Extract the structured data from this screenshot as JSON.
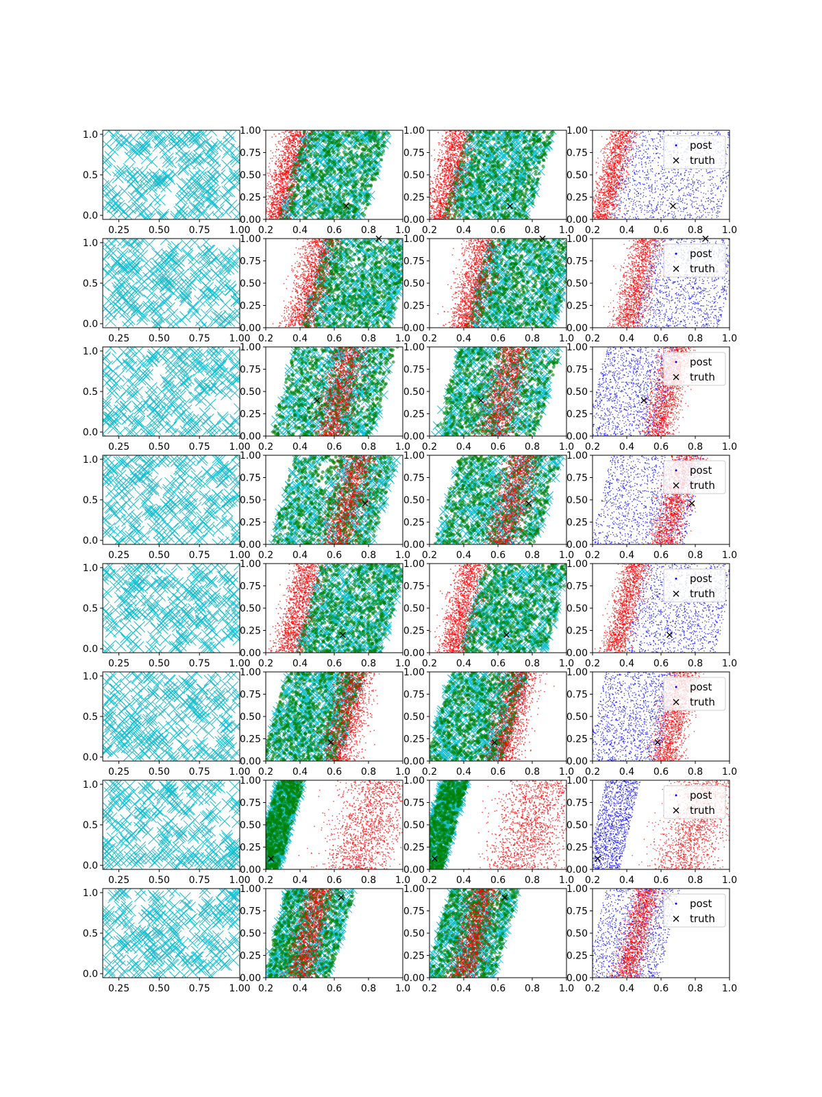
{
  "figure": {
    "rows": 8,
    "cols": 4,
    "colors": {
      "prior": "#17becf",
      "samples_a": "#ff0000",
      "samples_b": "#008000",
      "post": "#0000ff",
      "truth": "#000000",
      "axis": "#000000"
    }
  },
  "chart_data": {
    "type": "scatter",
    "panel_types": [
      "prior",
      "overlay",
      "overlay",
      "posterior"
    ],
    "column_axes": [
      {
        "xlim": [
          0.15,
          1.0
        ],
        "ylim": [
          -0.05,
          1.05
        ],
        "xticks": [
          "0.25",
          "0.50",
          "0.75",
          "1.00"
        ],
        "yticks": [
          "0.0",
          "0.5",
          "1.0"
        ]
      },
      {
        "xlim": [
          0.2,
          1.0
        ],
        "ylim": [
          0.0,
          1.0
        ],
        "xticks": [
          "0.2",
          "0.4",
          "0.6",
          "0.8",
          "1.0"
        ],
        "yticks": [
          "0.00",
          "0.25",
          "0.50",
          "0.75",
          "1.00"
        ]
      },
      {
        "xlim": [
          0.2,
          1.0
        ],
        "ylim": [
          0.0,
          1.0
        ],
        "xticks": [
          "0.2",
          "0.4",
          "0.6",
          "0.8",
          "1.0"
        ],
        "yticks": [
          "0.00",
          "0.25",
          "0.50",
          "0.75",
          "1.00"
        ]
      },
      {
        "xlim": [
          0.2,
          1.0
        ],
        "ylim": [
          0.0,
          1.0
        ],
        "xticks": [
          "0.2",
          "0.4",
          "0.6",
          "0.8",
          "1.0"
        ],
        "yticks": [
          "0.00",
          "0.25",
          "0.50",
          "0.75",
          "1.00"
        ]
      }
    ],
    "legend": {
      "entries": [
        "post",
        "truth"
      ],
      "placement": "upper right",
      "columns": [
        4
      ]
    },
    "series": [
      {
        "name": "post",
        "marker": "dot",
        "color": "#0000ff"
      },
      {
        "name": "truth",
        "marker": "x",
        "color": "#000000"
      }
    ],
    "rows": [
      {
        "truth": [
          0.67,
          0.15
        ],
        "post_band": {
          "center": [
            0.25,
            0.38
          ],
          "width": 0.1,
          "color": "red"
        },
        "post_spread": {
          "x": [
            0.35,
            1.0
          ],
          "color": "blue"
        },
        "samples_b_band": [
          0.35,
          0.85
        ]
      },
      {
        "truth": [
          0.86,
          1.0
        ],
        "post_band": {
          "center": [
            0.4,
            0.52
          ],
          "width": 0.12,
          "color": "red"
        },
        "post_spread": {
          "x": [
            0.5,
            1.0
          ],
          "color": "blue"
        },
        "samples_b_band": [
          0.48,
          1.0
        ]
      },
      {
        "truth": [
          0.5,
          0.4
        ],
        "post_band": {
          "center": [
            0.58,
            0.7
          ],
          "width": 0.12,
          "color": "red"
        },
        "post_spread": {
          "x": [
            0.22,
            0.65
          ],
          "color": "blue"
        },
        "samples_b_band": [
          0.3,
          0.9
        ]
      },
      {
        "truth": [
          0.78,
          0.46
        ],
        "post_band": {
          "center": [
            0.62,
            0.75
          ],
          "width": 0.12,
          "color": "red"
        },
        "post_spread": {
          "x": [
            0.25,
            0.8
          ],
          "color": "blue"
        },
        "samples_b_band": [
          0.3,
          0.9
        ]
      },
      {
        "truth": [
          0.65,
          0.2
        ],
        "post_band": {
          "center": [
            0.33,
            0.45
          ],
          "width": 0.1,
          "color": "red"
        },
        "post_spread": {
          "x": [
            0.45,
            0.98
          ],
          "color": "blue"
        },
        "samples_b_band": [
          0.45,
          0.95
        ]
      },
      {
        "truth": [
          0.58,
          0.21
        ],
        "post_band": {
          "center": [
            0.62,
            0.74
          ],
          "width": 0.12,
          "color": "red"
        },
        "post_spread": {
          "x": [
            0.22,
            0.65
          ],
          "color": "blue"
        },
        "samples_b_band": [
          0.25,
          0.7
        ]
      },
      {
        "truth": [
          0.23,
          0.12
        ],
        "post_band": {
          "center": [
            0.72,
            0.88
          ],
          "width": 0.25,
          "color": "red"
        },
        "post_spread": {
          "x": [
            0.22,
            0.42
          ],
          "color": "blue"
        },
        "samples_b_band": [
          0.2,
          0.35
        ]
      },
      {
        "truth": [
          0.64,
          0.9
        ],
        "post_band": {
          "center": [
            0.4,
            0.52
          ],
          "width": 0.1,
          "color": "red"
        },
        "post_spread": {
          "x": [
            0.22,
            0.65
          ],
          "color": "blue"
        },
        "samples_b_band": [
          0.25,
          0.65
        ]
      }
    ]
  }
}
